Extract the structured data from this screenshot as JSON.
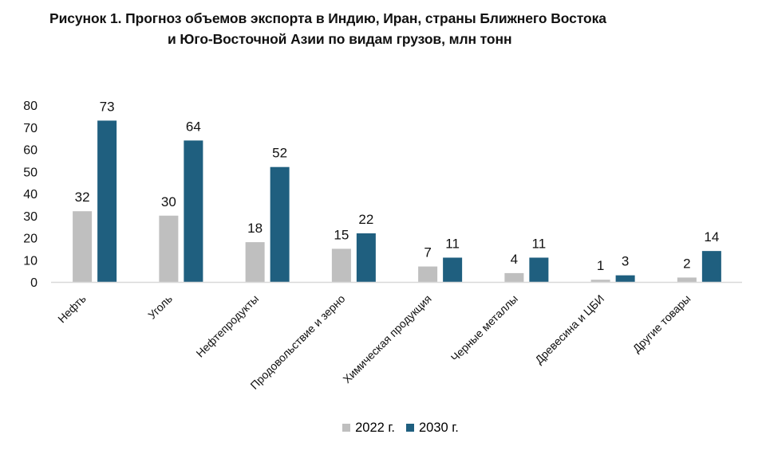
{
  "title": {
    "line1": "Рисунок 1. Прогноз объемов экспорта в Индию, Иран, страны Ближнего Востока",
    "line2": "и Юго-Восточной Азии по видам грузов, млн тонн"
  },
  "colors": {
    "series_2022": "#bfbfbf",
    "series_2030": "#1f5f7f",
    "axis": "#d9d9d9"
  },
  "chart_data": {
    "type": "bar",
    "title": "Рисунок 1. Прогноз объемов экспорта в Индию, Иран, страны Ближнего Востока и Юго-Восточной Азии по видам грузов, млн тонн",
    "categories": [
      "Нефть",
      "Уголь",
      "Нефтепродукты",
      "Продовольствие и зерно",
      "Химическая продукция",
      "Черные металлы",
      "Древесина и ЦБИ",
      "Другие товары"
    ],
    "series": [
      {
        "name": "2022 г.",
        "values": [
          32,
          30,
          18,
          15,
          7,
          4,
          1,
          2
        ],
        "labels": [
          "32",
          "30",
          "18",
          "15",
          "7",
          "4",
          "1",
          "2"
        ]
      },
      {
        "name": "2030 г.",
        "values": [
          73,
          64,
          52,
          22,
          11,
          11,
          3,
          14
        ],
        "labels": [
          "73",
          "64",
          "52",
          "22",
          "11",
          "11",
          "3",
          "14"
        ]
      }
    ],
    "ylim": [
      0,
      80
    ],
    "yticks": [
      0,
      10,
      20,
      30,
      40,
      50,
      60,
      70,
      80
    ],
    "grid": false,
    "legend_position": "bottom",
    "xlabel": "",
    "ylabel": ""
  }
}
